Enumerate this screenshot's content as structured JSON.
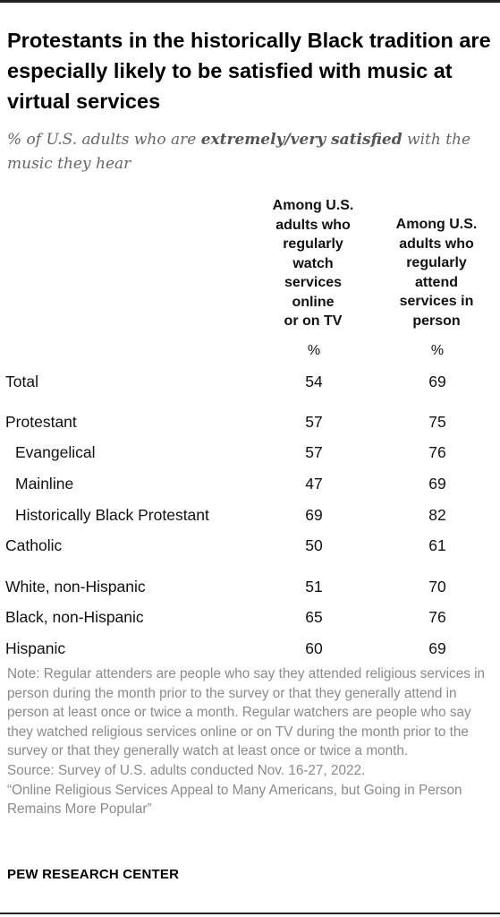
{
  "chart_data": {
    "type": "table",
    "title": "Protestants in the historically Black tradition are especially likely to be satisfied with music at virtual services",
    "subtitle": {
      "prefix": "% of U.S. adults who are ",
      "emphasis": "extremely/very satisfied",
      "suffix": " with the music they hear"
    },
    "columns": [
      {
        "header": "Among U.S.\nadults who\nregularly\nwatch\nservices\nonline\nor on TV",
        "unit": "%"
      },
      {
        "header": "Among U.S.\nadults who\nregularly\nattend\nservices in\nperson",
        "unit": "%"
      }
    ],
    "rows": [
      {
        "label": "Total",
        "online": 54,
        "in_person": 69,
        "indent": false
      },
      {
        "label": "Protestant",
        "online": 57,
        "in_person": 75,
        "indent": false
      },
      {
        "label": "Evangelical",
        "online": 57,
        "in_person": 76,
        "indent": true
      },
      {
        "label": "Mainline",
        "online": 47,
        "in_person": 69,
        "indent": true
      },
      {
        "label": "Historically Black Protestant",
        "online": 69,
        "in_person": 82,
        "indent": true
      },
      {
        "label": "Catholic",
        "online": 50,
        "in_person": 61,
        "indent": false
      },
      {
        "label": "White, non-Hispanic",
        "online": 51,
        "in_person": 70,
        "indent": false
      },
      {
        "label": "Black, non-Hispanic",
        "online": 65,
        "in_person": 76,
        "indent": false
      },
      {
        "label": "Hispanic",
        "online": 60,
        "in_person": 69,
        "indent": false
      }
    ]
  },
  "notes": {
    "note": "Note: Regular attenders are people who say they attended religious services in person during the month prior to the survey or that they generally attend in person at least once or twice a month. Regular watchers are people who say they watched religious services online or on TV during the month prior to the survey or that they generally watch at least once or twice a month.",
    "source": "Source: Survey of U.S. adults conducted Nov. 16-27, 2022.",
    "report": "“Online Religious Services Appeal to Many Americans, but Going in Person Remains More Popular”"
  },
  "brand": "PEW RESEARCH CENTER"
}
